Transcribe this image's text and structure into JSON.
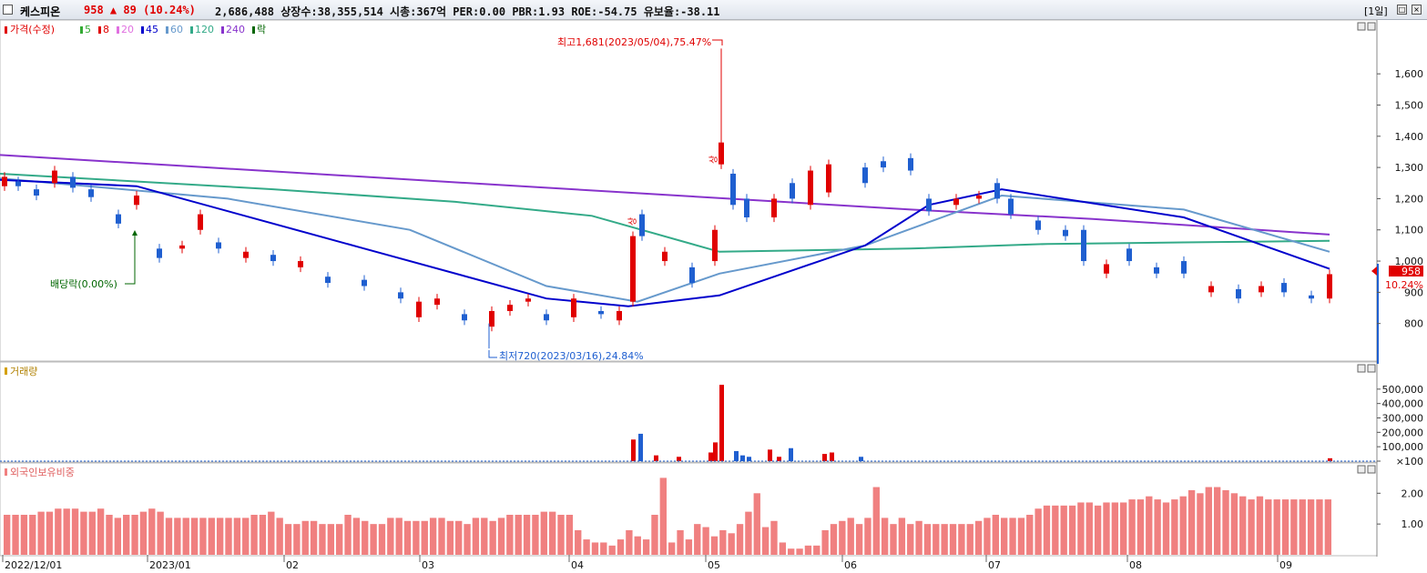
{
  "header": {
    "name": "케스피온",
    "price": "958",
    "change_arrow": "▲",
    "change": "89",
    "change_pct": "(10.24%)",
    "stats": "2,686,488  상장수:38,355,514  시총:367억  PER:0.00  PBR:1.93  ROE:-54.75  유보율:-38.11",
    "period": "[1일]"
  },
  "legend": {
    "price_label": "가격(수정)",
    "ma_items": [
      {
        "label": "5",
        "color": "#33aa33"
      },
      {
        "label": "8",
        "color": "#e00000"
      },
      {
        "label": "20",
        "color": "#e070e0"
      },
      {
        "label": "45",
        "color": "#0000cc"
      },
      {
        "label": "60",
        "color": "#6699cc"
      },
      {
        "label": "120",
        "color": "#33aa88"
      },
      {
        "label": "240",
        "color": "#8833cc"
      },
      {
        "label": "락",
        "color": "#006600"
      }
    ],
    "volume_label": "거래량",
    "foreign_label": "외국인보유비중"
  },
  "annotations": {
    "high": "최고1,681(2023/05/04),75.47%",
    "low": "최저720(2023/03/16),24.84%",
    "dividend": "배당락(0.00%)",
    "up_mark": "상"
  },
  "price_tag": {
    "value": "958",
    "pct": "10.24%"
  },
  "colors": {
    "up": "#e00000",
    "down": "#1f5fd0",
    "foreign": "#f08080"
  },
  "chart_data": [
    {
      "type": "candlestick",
      "title": "",
      "yticks": [
        "800",
        "900",
        "1,000",
        "1,100",
        "1,200",
        "1,300",
        "1,400",
        "1,500",
        "1,600"
      ],
      "ylim": [
        700,
        1720
      ],
      "x_labels": [
        "2022/12/01",
        "2023/01",
        "02",
        "03",
        "04",
        "05",
        "06",
        "07",
        "08",
        "09"
      ],
      "series": [
        {
          "name": "240",
          "values": [
            [
              0,
              1340
            ],
            [
              200,
              1305
            ],
            [
              400,
              1270
            ],
            [
              600,
              1235
            ],
            [
              800,
              1200
            ],
            [
              1000,
              1165
            ],
            [
              1200,
              1135
            ],
            [
              1460,
              1085
            ]
          ]
        },
        {
          "name": "120",
          "values": [
            [
              0,
              1280
            ],
            [
              300,
              1230
            ],
            [
              500,
              1190
            ],
            [
              650,
              1145
            ],
            [
              790,
              1030
            ],
            [
              1000,
              1040
            ],
            [
              1150,
              1055
            ],
            [
              1300,
              1060
            ],
            [
              1460,
              1065
            ]
          ]
        },
        {
          "name": "60",
          "values": [
            [
              0,
              1265
            ],
            [
              250,
              1200
            ],
            [
              450,
              1100
            ],
            [
              600,
              920
            ],
            [
              700,
              870
            ],
            [
              790,
              960
            ],
            [
              950,
              1050
            ],
            [
              1100,
              1210
            ],
            [
              1300,
              1165
            ],
            [
              1460,
              1030
            ]
          ]
        },
        {
          "name": "45",
          "values": [
            [
              0,
              1260
            ],
            [
              150,
              1240
            ],
            [
              400,
              1040
            ],
            [
              600,
              880
            ],
            [
              690,
              855
            ],
            [
              790,
              890
            ],
            [
              950,
              1050
            ],
            [
              1020,
              1180
            ],
            [
              1100,
              1230
            ],
            [
              1300,
              1140
            ],
            [
              1460,
              975
            ]
          ]
        }
      ],
      "candles": [
        [
          5,
          1240,
          1270
        ],
        [
          20,
          1255,
          1240
        ],
        [
          40,
          1230,
          1210
        ],
        [
          60,
          1250,
          1290
        ],
        [
          80,
          1270,
          1235
        ],
        [
          100,
          1230,
          1205
        ],
        [
          130,
          1150,
          1120
        ],
        [
          150,
          1180,
          1210
        ],
        [
          175,
          1040,
          1010
        ],
        [
          200,
          1040,
          1050
        ],
        [
          220,
          1100,
          1150
        ],
        [
          240,
          1060,
          1040
        ],
        [
          270,
          1010,
          1030
        ],
        [
          300,
          1020,
          1000
        ],
        [
          330,
          980,
          1000
        ],
        [
          360,
          950,
          930
        ],
        [
          400,
          940,
          920
        ],
        [
          440,
          900,
          880
        ],
        [
          460,
          820,
          870
        ],
        [
          480,
          860,
          880
        ],
        [
          510,
          830,
          810
        ],
        [
          540,
          790,
          840
        ],
        [
          560,
          840,
          860
        ],
        [
          580,
          870,
          880
        ],
        [
          600,
          830,
          810
        ],
        [
          630,
          820,
          880
        ],
        [
          660,
          840,
          830
        ],
        [
          680,
          810,
          840
        ],
        [
          695,
          870,
          1080
        ],
        [
          705,
          1150,
          1080
        ],
        [
          730,
          1000,
          1030
        ],
        [
          760,
          980,
          930
        ],
        [
          785,
          1000,
          1100
        ],
        [
          792,
          1310,
          1380
        ],
        [
          805,
          1280,
          1180
        ],
        [
          820,
          1200,
          1140
        ],
        [
          850,
          1140,
          1200
        ],
        [
          870,
          1250,
          1200
        ],
        [
          890,
          1180,
          1290
        ],
        [
          910,
          1220,
          1310
        ],
        [
          950,
          1300,
          1250
        ],
        [
          970,
          1320,
          1300
        ],
        [
          1000,
          1330,
          1290
        ],
        [
          1020,
          1200,
          1160
        ],
        [
          1050,
          1180,
          1200
        ],
        [
          1075,
          1200,
          1210
        ],
        [
          1095,
          1250,
          1200
        ],
        [
          1110,
          1200,
          1150
        ],
        [
          1140,
          1130,
          1100
        ],
        [
          1170,
          1100,
          1080
        ],
        [
          1190,
          1100,
          1000
        ],
        [
          1215,
          960,
          990
        ],
        [
          1240,
          1040,
          1000
        ],
        [
          1270,
          980,
          960
        ],
        [
          1300,
          1000,
          960
        ],
        [
          1330,
          900,
          920
        ],
        [
          1360,
          910,
          880
        ],
        [
          1385,
          900,
          920
        ],
        [
          1410,
          930,
          900
        ],
        [
          1440,
          890,
          880
        ],
        [
          1460,
          880,
          958
        ]
      ]
    },
    {
      "type": "bar",
      "title": "",
      "yticks": [
        "×100",
        "100,000",
        "200,000",
        "300,000",
        "400,000",
        "500,000"
      ],
      "ylim": [
        0,
        600000
      ],
      "values": [
        [
          695,
          150000
        ],
        [
          703,
          190000
        ],
        [
          720,
          40000
        ],
        [
          745,
          30000
        ],
        [
          780,
          60000
        ],
        [
          785,
          130000
        ],
        [
          792,
          530000
        ],
        [
          808,
          70000
        ],
        [
          815,
          40000
        ],
        [
          822,
          30000
        ],
        [
          845,
          80000
        ],
        [
          855,
          30000
        ],
        [
          868,
          90000
        ],
        [
          905,
          50000
        ],
        [
          913,
          60000
        ],
        [
          945,
          30000
        ],
        [
          1460,
          20000
        ]
      ]
    },
    {
      "type": "bar",
      "title": "",
      "yticks": [
        "1.00",
        "2.00"
      ],
      "ylim": [
        0,
        2.6
      ],
      "values": [
        1.3,
        1.3,
        1.3,
        1.3,
        1.4,
        1.4,
        1.5,
        1.5,
        1.5,
        1.4,
        1.4,
        1.5,
        1.3,
        1.2,
        1.3,
        1.3,
        1.4,
        1.5,
        1.4,
        1.2,
        1.2,
        1.2,
        1.2,
        1.2,
        1.2,
        1.2,
        1.2,
        1.2,
        1.2,
        1.3,
        1.3,
        1.4,
        1.2,
        1.0,
        1.0,
        1.1,
        1.1,
        1.0,
        1.0,
        1.0,
        1.3,
        1.2,
        1.1,
        1.0,
        1.0,
        1.2,
        1.2,
        1.1,
        1.1,
        1.1,
        1.2,
        1.2,
        1.1,
        1.1,
        1.0,
        1.2,
        1.2,
        1.1,
        1.2,
        1.3,
        1.3,
        1.3,
        1.3,
        1.4,
        1.4,
        1.3,
        1.3,
        0.8,
        0.5,
        0.4,
        0.4,
        0.3,
        0.5,
        0.8,
        0.6,
        0.5,
        1.3,
        2.5,
        0.4,
        0.8,
        0.5,
        1.0,
        0.9,
        0.6,
        0.8,
        0.7,
        1.0,
        1.4,
        2.0,
        0.9,
        1.1,
        0.4,
        0.2,
        0.2,
        0.3,
        0.3,
        0.8,
        1.0,
        1.1,
        1.2,
        1.0,
        1.2,
        2.2,
        1.2,
        1.0,
        1.2,
        1.0,
        1.1,
        1.0,
        1.0,
        1.0,
        1.0,
        1.0,
        1.0,
        1.1,
        1.2,
        1.3,
        1.2,
        1.2,
        1.2,
        1.3,
        1.5,
        1.6,
        1.6,
        1.6,
        1.6,
        1.7,
        1.7,
        1.6,
        1.7,
        1.7,
        1.7,
        1.8,
        1.8,
        1.9,
        1.8,
        1.7,
        1.8,
        1.9,
        2.1,
        2.0,
        2.2,
        2.2,
        2.1,
        2.0,
        1.9,
        1.8,
        1.9,
        1.8,
        1.8,
        1.8,
        1.8,
        1.8,
        1.8,
        1.8,
        1.8
      ]
    }
  ]
}
